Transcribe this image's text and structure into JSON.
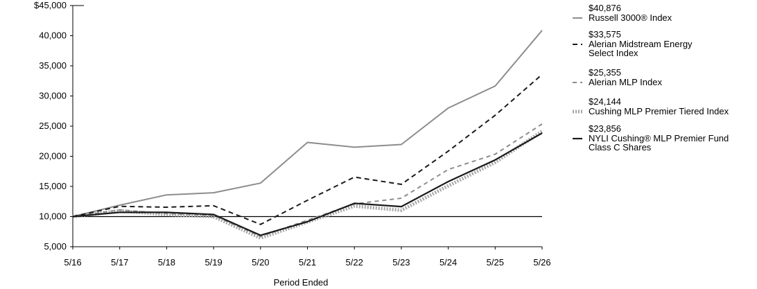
{
  "chart_data": {
    "type": "line",
    "title": "",
    "xlabel": "Period Ended",
    "ylabel": "",
    "categories": [
      "5/16",
      "5/17",
      "5/18",
      "5/19",
      "5/20",
      "5/21",
      "5/22",
      "5/23",
      "5/24",
      "5/25",
      "5/26"
    ],
    "ylim": [
      5000,
      45000
    ],
    "yticks": [
      5000,
      10000,
      15000,
      20000,
      25000,
      30000,
      35000,
      40000,
      45000
    ],
    "ytick_labels": [
      "5,000",
      "10,000",
      "15,000",
      "20,000",
      "25,000",
      "30,000",
      "35,000",
      "40,000",
      "$45,000"
    ],
    "reference_line": 10000,
    "grid": false,
    "legend_position": "right",
    "series": [
      {
        "name_lines": [
          "Russell 3000® Index"
        ],
        "end_label": "$40,876",
        "style": "solid",
        "color": "#8c8c8c",
        "values": [
          10000,
          11900,
          13600,
          13950,
          15550,
          22300,
          21500,
          21950,
          28000,
          31650,
          40876
        ]
      },
      {
        "name_lines": [
          "Alerian Midstream Energy",
          "Select Index"
        ],
        "end_label": "$33,575",
        "style": "dashed",
        "color": "#1a1a1a",
        "values": [
          10000,
          11700,
          11550,
          11800,
          8700,
          12700,
          16550,
          15350,
          20850,
          26800,
          33575
        ]
      },
      {
        "name_lines": [
          "Alerian MLP Index"
        ],
        "end_label": "$25,355",
        "style": "dashed",
        "color": "#8c8c8c",
        "values": [
          10000,
          11100,
          10500,
          10200,
          6700,
          9400,
          12100,
          13050,
          17800,
          20350,
          25355
        ]
      },
      {
        "name_lines": [
          "Cushing MLP Premier Tiered Index"
        ],
        "end_label": "$24,144",
        "style": "dotted",
        "color": "#a6a6a6",
        "values": [
          10000,
          10950,
          10350,
          10000,
          6450,
          9100,
          11750,
          11050,
          15100,
          19000,
          24144
        ]
      },
      {
        "name_lines": [
          "NYLI Cushing® MLP Premier Fund",
          "Class C Shares"
        ],
        "end_label": "$23,856",
        "style": "solid",
        "color": "#1a1a1a",
        "values": [
          10000,
          10700,
          10700,
          10350,
          6900,
          9150,
          12200,
          11650,
          15800,
          19400,
          23856
        ]
      }
    ]
  }
}
